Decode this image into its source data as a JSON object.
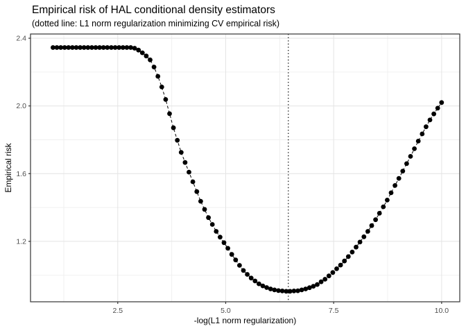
{
  "chart_data": {
    "type": "scatter",
    "title": "Empirical risk of HAL conditional density estimators",
    "subtitle": "(dotted line: L1 norm regularization minimizing CV empirical risk)",
    "xlabel": "-log(L1 norm regularization)",
    "ylabel": "Empirical risk",
    "xlim": [
      0.48,
      10.42
    ],
    "ylim": [
      0.843,
      2.425
    ],
    "x_ticks": [
      2.5,
      5.0,
      7.5,
      10.0
    ],
    "x_tick_labels": [
      "2.5",
      "5.0",
      "7.5",
      "10.0"
    ],
    "y_ticks": [
      1.2,
      1.6,
      2.0,
      2.4
    ],
    "y_tick_labels": [
      "1.2",
      "1.6",
      "2.0",
      "2.4"
    ],
    "x_minor_ticks": [
      1.25,
      3.75,
      6.25,
      8.75
    ],
    "y_minor_ticks": [
      1.0,
      1.4,
      1.8,
      2.2
    ],
    "grid": true,
    "legend": false,
    "vline_x": 6.45,
    "vline_style": "dotted",
    "line_style": "dashed",
    "point_shape": "filled-circle",
    "colors": {
      "background": "#ffffff",
      "grid_major": "#e4e4e4",
      "grid_minor": "#f0f0f0",
      "panel_border": "#333333",
      "tick": "#333333",
      "tick_label": "#4d4d4d",
      "text": "#000000",
      "point": "#000000",
      "line": "#000000",
      "vline": "#000000"
    },
    "series": [
      {
        "name": "empirical-risk",
        "x": [
          1.0,
          1.09,
          1.18,
          1.27,
          1.36,
          1.45,
          1.54,
          1.63,
          1.72,
          1.81,
          1.9,
          1.99,
          2.08,
          2.17,
          2.26,
          2.35,
          2.44,
          2.53,
          2.62,
          2.71,
          2.8,
          2.89,
          2.98,
          3.07,
          3.16,
          3.25,
          3.34,
          3.43,
          3.52,
          3.61,
          3.7,
          3.79,
          3.88,
          3.97,
          4.06,
          4.15,
          4.24,
          4.33,
          4.42,
          4.51,
          4.6,
          4.69,
          4.78,
          4.87,
          4.96,
          5.05,
          5.14,
          5.23,
          5.32,
          5.41,
          5.5,
          5.59,
          5.68,
          5.77,
          5.86,
          5.95,
          6.04,
          6.13,
          6.22,
          6.31,
          6.4,
          6.49,
          6.58,
          6.67,
          6.76,
          6.85,
          6.94,
          7.03,
          7.12,
          7.21,
          7.3,
          7.39,
          7.48,
          7.57,
          7.66,
          7.75,
          7.84,
          7.93,
          8.02,
          8.11,
          8.2,
          8.29,
          8.38,
          8.47,
          8.56,
          8.65,
          8.74,
          8.83,
          8.92,
          9.01,
          9.1,
          9.19,
          9.28,
          9.37,
          9.46,
          9.55,
          9.64,
          9.73,
          9.82,
          9.91,
          10.0
        ],
        "y": [
          2.345,
          2.345,
          2.345,
          2.345,
          2.345,
          2.345,
          2.345,
          2.345,
          2.345,
          2.345,
          2.345,
          2.345,
          2.345,
          2.345,
          2.345,
          2.345,
          2.345,
          2.345,
          2.345,
          2.345,
          2.345,
          2.341,
          2.33,
          2.314,
          2.295,
          2.272,
          2.23,
          2.175,
          2.112,
          2.038,
          1.954,
          1.871,
          1.797,
          1.726,
          1.666,
          1.609,
          1.552,
          1.494,
          1.437,
          1.389,
          1.34,
          1.3,
          1.259,
          1.225,
          1.192,
          1.159,
          1.123,
          1.09,
          1.058,
          1.028,
          1.005,
          0.983,
          0.966,
          0.949,
          0.937,
          0.927,
          0.919,
          0.913,
          0.909,
          0.907,
          0.905,
          0.905,
          0.907,
          0.908,
          0.913,
          0.919,
          0.926,
          0.935,
          0.945,
          0.961,
          0.976,
          0.996,
          1.016,
          1.038,
          1.06,
          1.084,
          1.11,
          1.137,
          1.166,
          1.196,
          1.227,
          1.259,
          1.293,
          1.328,
          1.366,
          1.404,
          1.444,
          1.487,
          1.53,
          1.572,
          1.615,
          1.659,
          1.702,
          1.747,
          1.792,
          1.835,
          1.877,
          1.917,
          1.953,
          1.987,
          2.02
        ]
      }
    ]
  }
}
